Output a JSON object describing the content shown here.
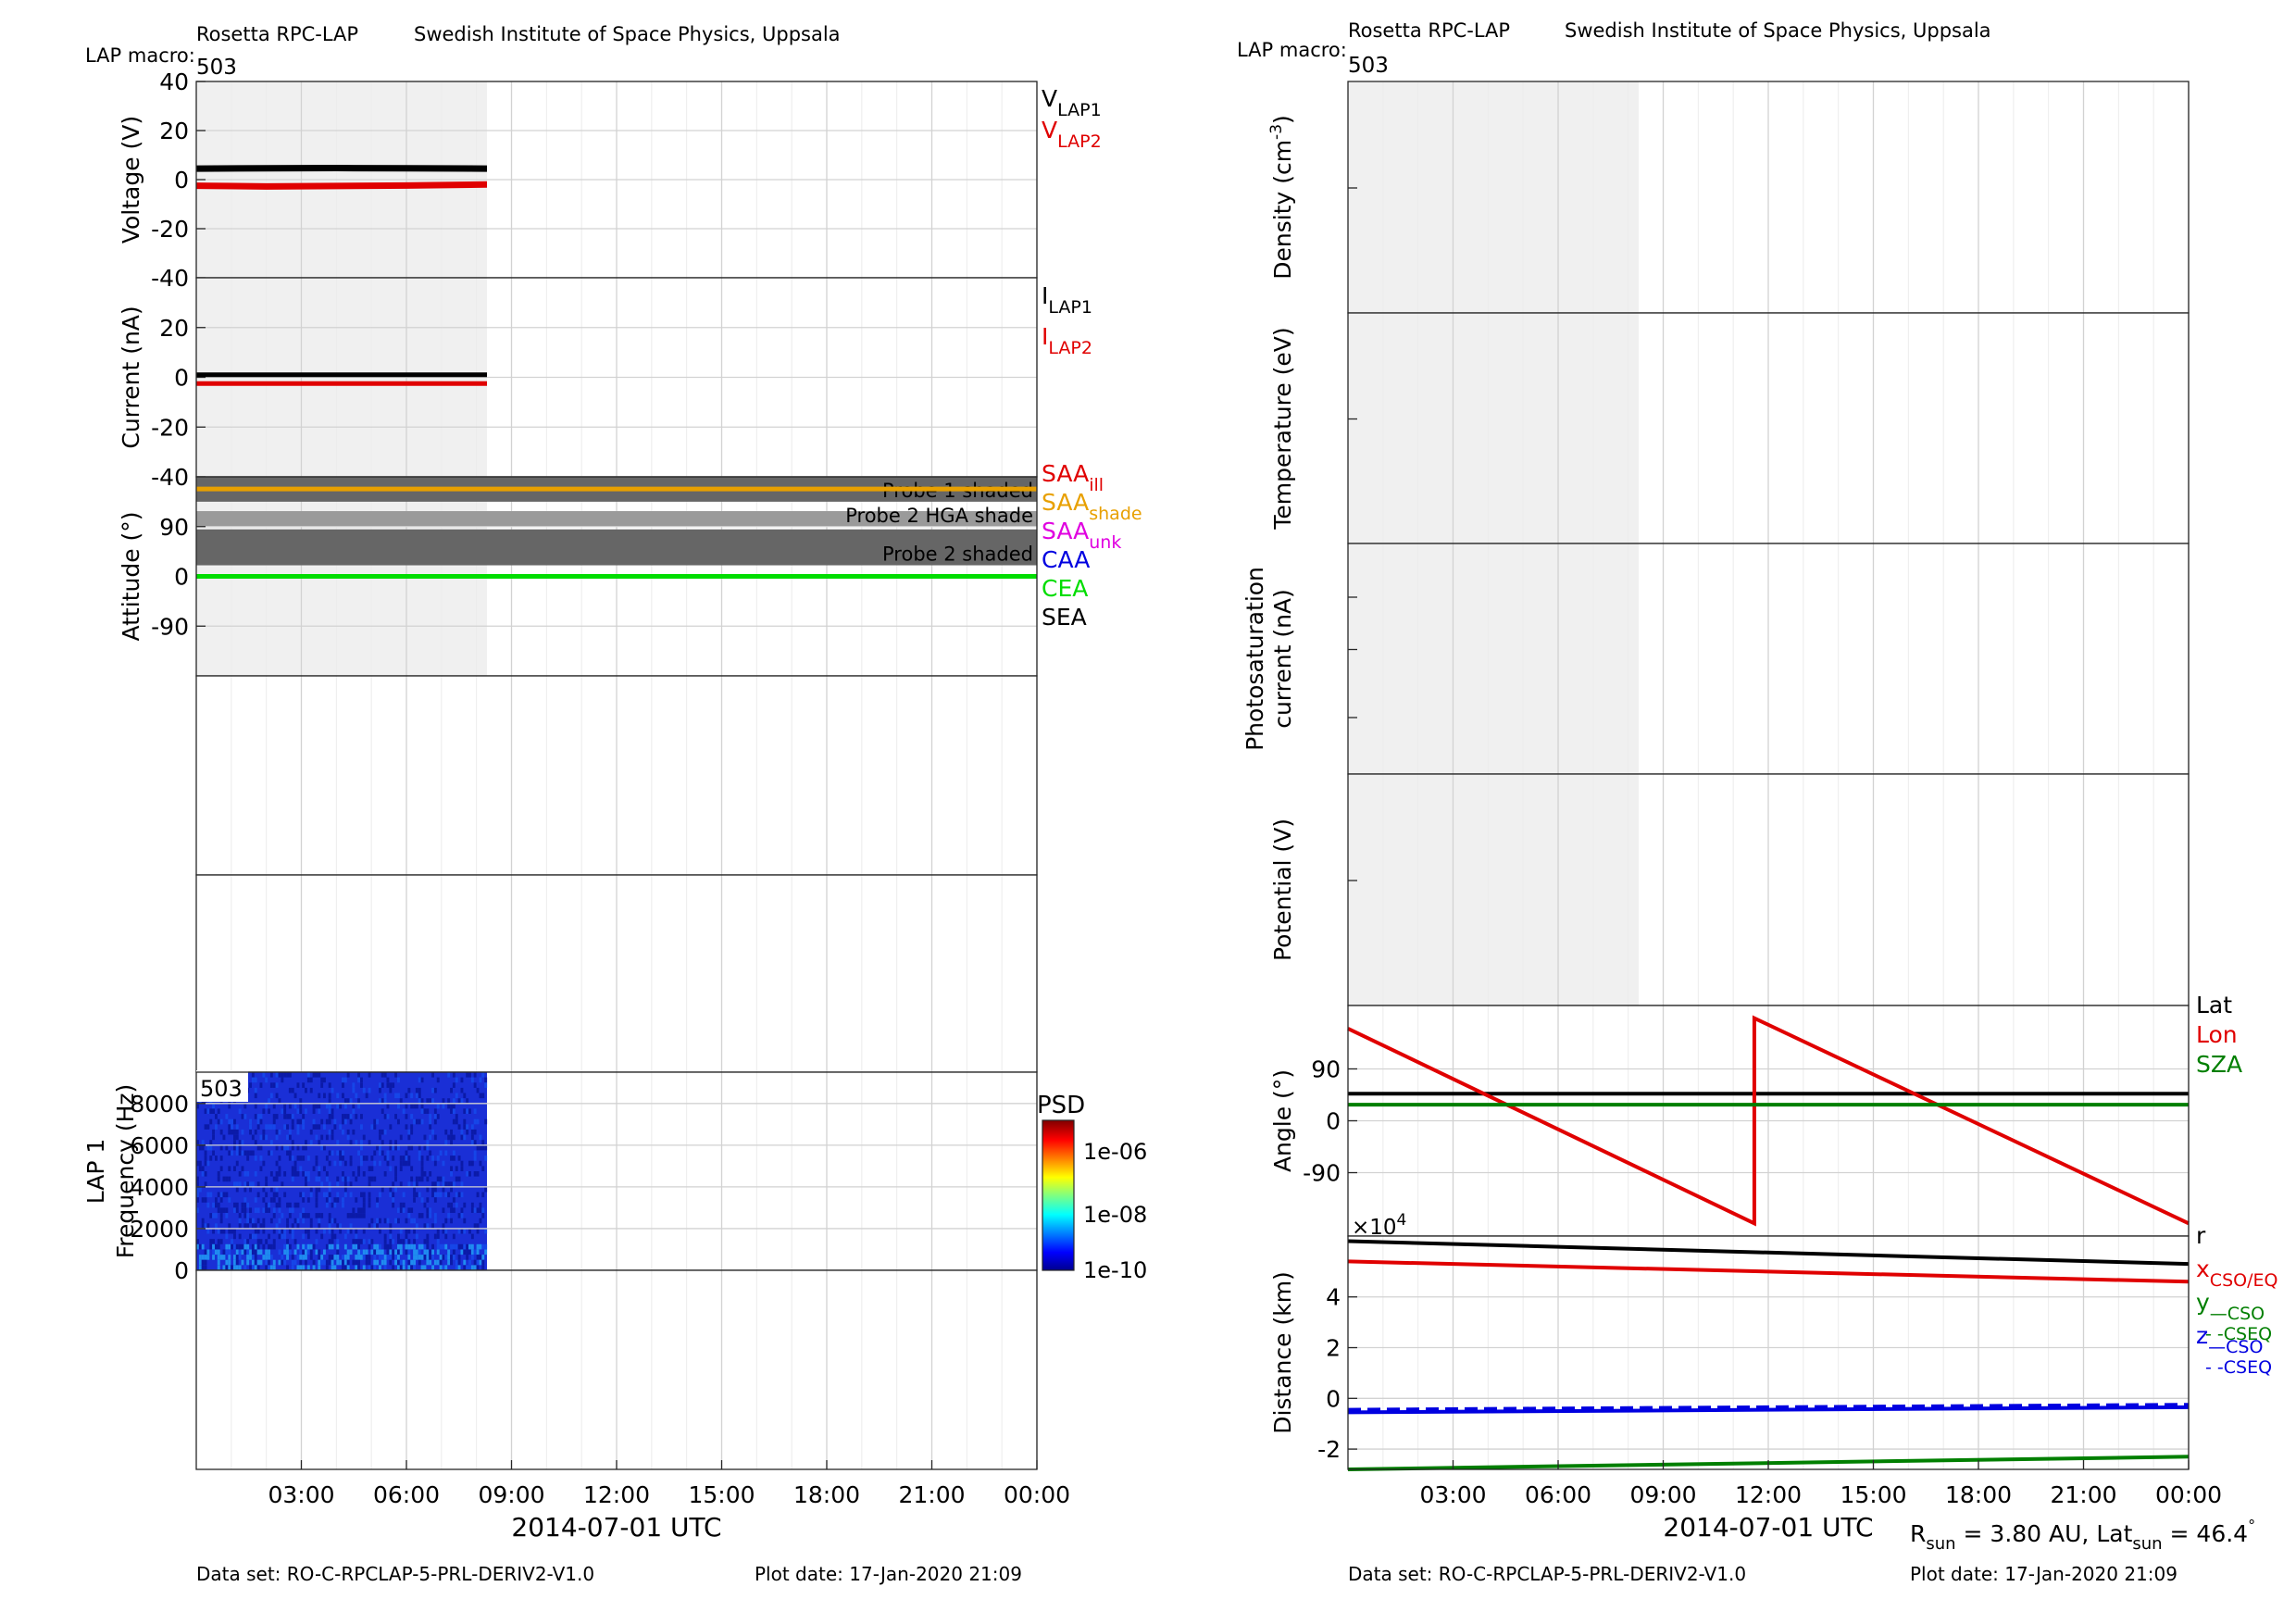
{
  "header": {
    "left_instrument": "Rosetta RPC-LAP",
    "left_institute": "Swedish Institute of Space Physics, Uppsala",
    "right_instrument": "Rosetta RPC-LAP",
    "right_institute": "Swedish Institute of Space Physics, Uppsala",
    "macro_label": "LAP macro:",
    "macro_value": "503"
  },
  "footer": {
    "dataset_left": "Data set: RO-C-RPCLAP-5-PRL-DERIV2-V1.0",
    "plotdate_left": "Plot date: 17-Jan-2020 21:09",
    "dataset_right": "Data set: RO-C-RPCLAP-5-PRL-DERIV2-V1.0",
    "plotdate_right": "Plot date: 17-Jan-2020 21:09",
    "rsun_text": "R",
    "rsun_sub": "sun",
    "rsun_value": " = 3.80 AU, Lat",
    "lat_sub": "sun",
    "lat_value": " = 46.4",
    "lat_unit": "°"
  },
  "time_axis": {
    "title": "2014-07-01 UTC",
    "ticks": [
      "03:00",
      "06:00",
      "09:00",
      "12:00",
      "15:00",
      "18:00",
      "21:00",
      "00:00"
    ],
    "tick_hours": [
      3,
      6,
      9,
      12,
      15,
      18,
      21,
      24
    ],
    "range_hours": [
      0,
      24
    ],
    "shaded_until_hours": 8.3
  },
  "chart_data": [
    {
      "id": "voltage",
      "type": "line",
      "ylabel": "Voltage (V)",
      "ylim": [
        -40,
        40
      ],
      "yticks": [
        40,
        20,
        0,
        -20,
        -40
      ],
      "legend": [
        {
          "text": "V",
          "sub": "LAP1",
          "color": "#000000"
        },
        {
          "text": "V",
          "sub": "LAP2",
          "color": "#e00000"
        }
      ],
      "series": [
        {
          "name": "V LAP1",
          "color": "#000000",
          "x": [
            0,
            2,
            4,
            6,
            8.3
          ],
          "y": [
            4.5,
            4.6,
            4.7,
            4.6,
            4.5
          ]
        },
        {
          "name": "V LAP2",
          "color": "#e00000",
          "x": [
            0,
            2,
            4,
            6,
            8.3
          ],
          "y": [
            -2.5,
            -2.8,
            -2.6,
            -2.4,
            -2.0
          ]
        }
      ]
    },
    {
      "id": "current",
      "type": "line",
      "ylabel": "Current (nA)",
      "ylim": [
        -40,
        40
      ],
      "yticks": [
        20,
        0,
        -20,
        -40
      ],
      "legend": [
        {
          "text": "I",
          "sub": "LAP1",
          "color": "#000000"
        },
        {
          "text": "I",
          "sub": "LAP2",
          "color": "#e00000"
        }
      ],
      "series": [
        {
          "name": "I LAP1",
          "color": "#000000",
          "x": [
            0,
            8.3
          ],
          "y": [
            1,
            1
          ]
        },
        {
          "name": "I LAP2",
          "color": "#e00000",
          "x": [
            0,
            8.3
          ],
          "y": [
            -2.5,
            -2.5
          ]
        }
      ]
    },
    {
      "id": "attitude",
      "type": "line",
      "ylabel": "Attitude (°)",
      "ylim": [
        -180,
        180
      ],
      "yticks": [
        90,
        0,
        -90
      ],
      "bands": [
        {
          "label": "Probe 1 shaded",
          "y0": 135,
          "y1": 180,
          "color": "#666666"
        },
        {
          "label": "Probe 2 HGA shade",
          "y0": 90,
          "y1": 118,
          "color": "#9a9a9a"
        },
        {
          "label": "Probe 2 shaded",
          "y0": 20,
          "y1": 85,
          "color": "#666666"
        }
      ],
      "legend": [
        {
          "text": "SAA",
          "sub": "ill",
          "color": "#e00000"
        },
        {
          "text": "SAA",
          "sub": "shade",
          "color": "#e8a000"
        },
        {
          "text": "SAA",
          "sub": "unk",
          "color": "#e000e0"
        },
        {
          "text": "CAA",
          "sub": "",
          "color": "#0000e0"
        },
        {
          "text": "CEA",
          "sub": "",
          "color": "#00dd00"
        },
        {
          "text": "SEA",
          "sub": "",
          "color": "#000000"
        }
      ],
      "series": [
        {
          "name": "SAA",
          "color": "#e8a000",
          "x": [
            0,
            24
          ],
          "y": [
            158,
            158
          ]
        },
        {
          "name": "CEA",
          "color": "#00dd00",
          "x": [
            0,
            24
          ],
          "y": [
            0,
            0
          ]
        }
      ]
    },
    {
      "id": "spectrogram",
      "type": "heatmap",
      "label_top": "503",
      "ylabel": "LAP 1",
      "ylabel2": "Frequency (Hz)",
      "ylim": [
        0,
        9500
      ],
      "yticks": [
        8000,
        6000,
        4000,
        2000,
        0
      ],
      "x_range_hours": [
        0,
        8.3
      ],
      "colorbar": {
        "title": "PSD",
        "ticks": [
          "1e-06",
          "1e-08",
          "1e-10"
        ]
      }
    },
    {
      "id": "density",
      "type": "line",
      "ylabel": "Density (cm",
      "ylabel_sup": "-3",
      "ylabel_end": ")",
      "series": []
    },
    {
      "id": "temperature",
      "type": "line",
      "ylabel": "Temperature (eV)",
      "series": []
    },
    {
      "id": "photosat",
      "type": "line",
      "ylabel": "Photosaturation",
      "ylabel2": "current (nA)",
      "series": []
    },
    {
      "id": "potential",
      "type": "line",
      "ylabel": "Potential (V)",
      "series": []
    },
    {
      "id": "angle",
      "type": "line",
      "ylabel": "Angle (°)",
      "ylim": [
        -200,
        200
      ],
      "yticks": [
        90,
        0,
        -90
      ],
      "legend": [
        {
          "text": "Lat",
          "sub": "",
          "color": "#000000"
        },
        {
          "text": "Lon",
          "sub": "",
          "color": "#e00000"
        },
        {
          "text": "SZA",
          "sub": "",
          "color": "#007f00"
        }
      ],
      "series": [
        {
          "name": "Lat",
          "color": "#000000",
          "x": [
            0,
            24
          ],
          "y": [
            47,
            47
          ]
        },
        {
          "name": "Lon",
          "color": "#e00000",
          "x": [
            0,
            11.6,
            11.6,
            24
          ],
          "y": [
            160,
            -178,
            178,
            -178
          ]
        },
        {
          "name": "SZA",
          "color": "#007f00",
          "x": [
            0,
            24
          ],
          "y": [
            28,
            28
          ]
        }
      ]
    },
    {
      "id": "distance",
      "type": "line",
      "ylabel": "Distance (km)",
      "multiplier": "×10",
      "multiplier_exp": "4",
      "ylim": [
        -2.8,
        6.4
      ],
      "yticks": [
        4,
        2,
        0,
        -2
      ],
      "legend": [
        {
          "text": "r",
          "sub": "",
          "sub2": "",
          "color": "#000000"
        },
        {
          "text": "x",
          "sub": "CSO/EQ",
          "sub2": "",
          "color": "#e00000"
        },
        {
          "text": "y",
          "sub": "—CSO",
          "sub2": "- -CSEQ",
          "color": "#007f00"
        },
        {
          "text": "z",
          "sub": "—CSO",
          "sub2": "- -CSEQ",
          "color": "#0000e0"
        }
      ],
      "series": [
        {
          "name": "r",
          "color": "#000000",
          "dash": false,
          "x": [
            0,
            24
          ],
          "y": [
            6.2,
            5.3
          ]
        },
        {
          "name": "x",
          "color": "#e00000",
          "dash": false,
          "x": [
            0,
            24
          ],
          "y": [
            5.4,
            4.6
          ]
        },
        {
          "name": "y CSO",
          "color": "#007f00",
          "dash": false,
          "x": [
            0,
            24
          ],
          "y": [
            -2.8,
            -2.3
          ]
        },
        {
          "name": "z CSO",
          "color": "#0000e0",
          "dash": false,
          "x": [
            0,
            24
          ],
          "y": [
            -0.55,
            -0.35
          ]
        },
        {
          "name": "z CSEQ",
          "color": "#0000e0",
          "dash": true,
          "x": [
            0,
            24
          ],
          "y": [
            -0.45,
            -0.25
          ]
        }
      ]
    }
  ]
}
